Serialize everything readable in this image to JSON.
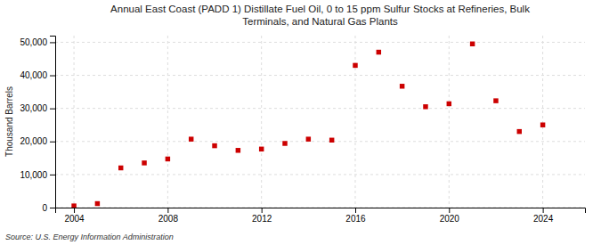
{
  "chart_data": {
    "type": "scatter",
    "title": "Annual East Coast (PADD 1) Distillate Fuel Oil, 0 to 15 ppm Sulfur Stocks at Refineries, Bulk\nTerminals, and Natural Gas Plants",
    "ylabel": "Thousand Barrels",
    "source": "Source: U.S. Energy Information Administration",
    "color": "#cc0000",
    "marker": "square",
    "grid": true,
    "xlim": [
      2003.2,
      2025.8
    ],
    "ylim": [
      0,
      52000
    ],
    "xticks": [
      2004,
      2008,
      2012,
      2016,
      2020,
      2024
    ],
    "yticks": [
      0,
      {
        "value": 10000,
        "label": "10,000"
      },
      {
        "value": 20000,
        "label": "20,000"
      },
      {
        "value": 30000,
        "label": "30,000"
      },
      {
        "value": 40000,
        "label": "40,000"
      },
      {
        "value": 50000,
        "label": "50,000"
      }
    ],
    "x": [
      2004,
      2005,
      2006,
      2007,
      2008,
      2009,
      2010,
      2011,
      2012,
      2013,
      2014,
      2015,
      2016,
      2017,
      2018,
      2019,
      2020,
      2021,
      2022,
      2023,
      2024
    ],
    "values": [
      500,
      1200,
      12000,
      13500,
      14700,
      20700,
      18700,
      17300,
      17700,
      19400,
      20700,
      20400,
      43000,
      47000,
      36700,
      30500,
      31400,
      49500,
      32300,
      23000,
      25000
    ]
  }
}
